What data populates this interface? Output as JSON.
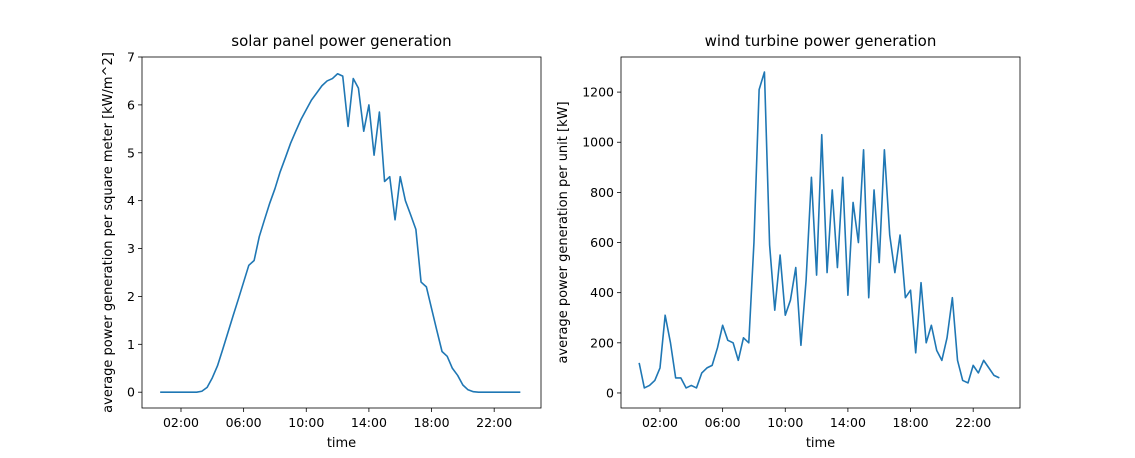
{
  "chart_data": [
    {
      "type": "line",
      "title": "solar panel power generation",
      "x_label": "time",
      "y_label": "average power generation per square meter [kW/m^2]",
      "x": [
        0.67,
        1,
        1.33,
        1.67,
        2,
        2.33,
        2.67,
        3,
        3.33,
        3.67,
        4,
        4.33,
        4.67,
        5,
        5.33,
        5.67,
        6,
        6.33,
        6.67,
        7,
        7.33,
        7.67,
        8,
        8.33,
        8.67,
        9,
        9.33,
        9.67,
        10,
        10.33,
        10.67,
        11,
        11.33,
        11.67,
        12,
        12.33,
        12.67,
        13,
        13.33,
        13.67,
        14,
        14.33,
        14.67,
        15,
        15.33,
        15.67,
        16,
        16.33,
        16.67,
        17,
        17.33,
        17.67,
        18,
        18.33,
        18.67,
        19,
        19.33,
        19.67,
        20,
        20.33,
        20.67,
        21,
        21.33,
        21.67,
        22,
        22.33,
        22.67,
        23,
        23.33,
        23.67
      ],
      "series": [
        {
          "color": "#1f77b4",
          "values": [
            0,
            0,
            0,
            0,
            0,
            0,
            0,
            0,
            0.02,
            0.1,
            0.3,
            0.55,
            0.9,
            1.25,
            1.6,
            1.95,
            2.3,
            2.65,
            2.75,
            3.25,
            3.6,
            3.95,
            4.25,
            4.6,
            4.9,
            5.2,
            5.45,
            5.7,
            5.9,
            6.1,
            6.25,
            6.4,
            6.5,
            6.55,
            6.65,
            6.6,
            5.55,
            6.55,
            6.35,
            5.45,
            6.0,
            4.95,
            5.85,
            4.4,
            4.5,
            3.6,
            4.5,
            4.0,
            3.7,
            3.4,
            2.3,
            2.2,
            1.75,
            1.3,
            0.85,
            0.75,
            0.5,
            0.35,
            0.15,
            0.05,
            0.01,
            0,
            0,
            0,
            0,
            0,
            0,
            0,
            0,
            0
          ]
        }
      ],
      "xlim": [
        -0.49,
        24.99
      ],
      "xticks": [
        {
          "value": 2,
          "label": "02:00"
        },
        {
          "value": 6,
          "label": "06:00"
        },
        {
          "value": 10,
          "label": "10:00"
        },
        {
          "value": 14,
          "label": "14:00"
        },
        {
          "value": 18,
          "label": "18:00"
        },
        {
          "value": 22,
          "label": "22:00"
        }
      ],
      "ylim": [
        -0.33,
        7.0
      ],
      "yticks": [
        0,
        1,
        2,
        3,
        4,
        5,
        6,
        7
      ],
      "grid": false
    },
    {
      "type": "line",
      "title": "wind turbine power generation",
      "x_label": "time",
      "y_label": "average power generation per unit [kW]",
      "x": [
        0.67,
        1,
        1.33,
        1.67,
        2,
        2.33,
        2.67,
        3,
        3.33,
        3.67,
        4,
        4.33,
        4.67,
        5,
        5.33,
        5.67,
        6,
        6.33,
        6.67,
        7,
        7.33,
        7.67,
        8,
        8.33,
        8.67,
        9,
        9.33,
        9.67,
        10,
        10.33,
        10.67,
        11,
        11.33,
        11.67,
        12,
        12.33,
        12.67,
        13,
        13.33,
        13.67,
        14,
        14.33,
        14.67,
        15,
        15.33,
        15.67,
        16,
        16.33,
        16.67,
        17,
        17.33,
        17.67,
        18,
        18.33,
        18.67,
        19,
        19.33,
        19.67,
        20,
        20.33,
        20.67,
        21,
        21.33,
        21.67,
        22,
        22.33,
        22.67,
        23,
        23.33,
        23.67
      ],
      "series": [
        {
          "color": "#1f77b4",
          "values": [
            120,
            20,
            30,
            50,
            100,
            310,
            200,
            60,
            60,
            20,
            30,
            20,
            80,
            100,
            110,
            180,
            270,
            210,
            200,
            130,
            220,
            200,
            600,
            1210,
            1280,
            590,
            330,
            550,
            310,
            370,
            500,
            190,
            450,
            860,
            470,
            1030,
            480,
            810,
            500,
            860,
            390,
            760,
            600,
            970,
            380,
            810,
            520,
            970,
            630,
            480,
            630,
            380,
            410,
            160,
            440,
            200,
            270,
            170,
            130,
            220,
            380,
            130,
            50,
            40,
            110,
            80,
            130,
            100,
            70,
            60
          ]
        }
      ],
      "xlim": [
        -0.49,
        24.99
      ],
      "xticks": [
        {
          "value": 2,
          "label": "02:00"
        },
        {
          "value": 6,
          "label": "06:00"
        },
        {
          "value": 10,
          "label": "10:00"
        },
        {
          "value": 14,
          "label": "14:00"
        },
        {
          "value": 18,
          "label": "18:00"
        },
        {
          "value": 22,
          "label": "22:00"
        }
      ],
      "ylim": [
        -60,
        1340
      ],
      "yticks": [
        0,
        200,
        400,
        600,
        800,
        1000,
        1200
      ],
      "grid": false
    }
  ]
}
